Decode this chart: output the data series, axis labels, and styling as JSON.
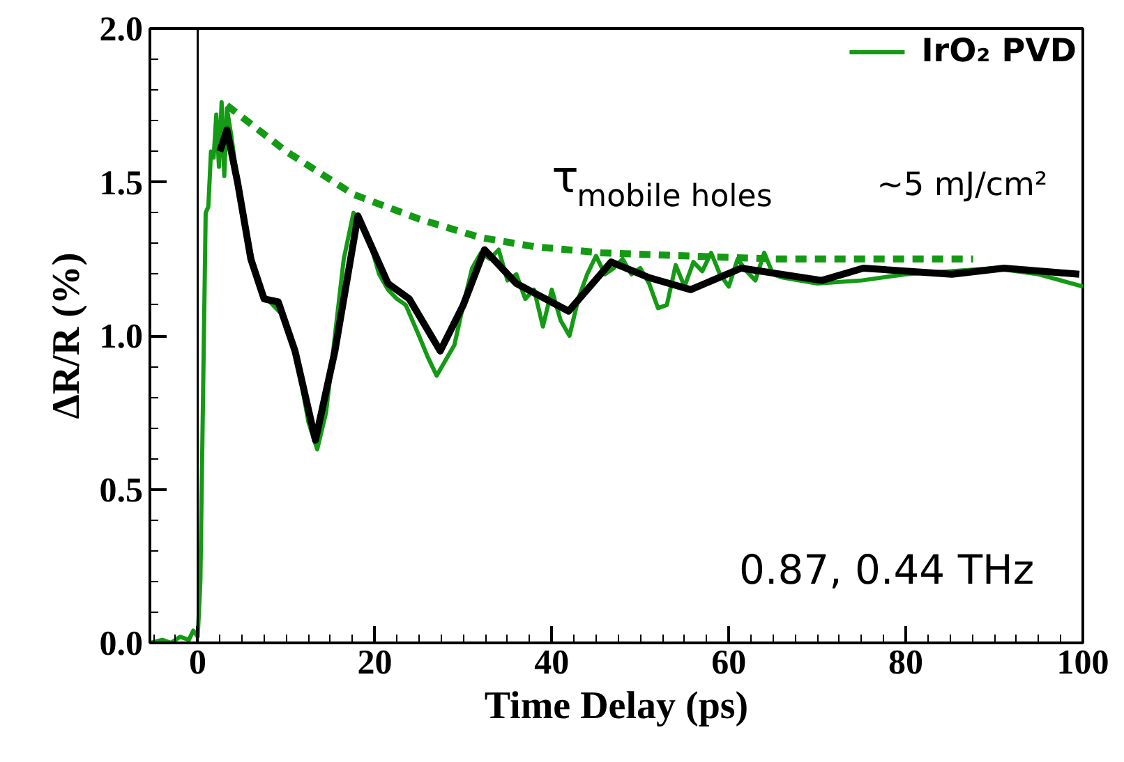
{
  "chart_data": {
    "type": "line",
    "xlabel": "Time Delay (ps)",
    "ylabel": "ΔR/R (%)",
    "x": [
      -5.4,
      -4,
      -3,
      -2,
      -1,
      -0.5,
      0,
      0.3,
      0.6,
      0.9,
      1.2,
      1.5,
      1.8,
      2.1,
      2.4,
      2.7,
      3,
      3.3,
      3.8,
      4.5,
      5.5,
      6.5,
      7.5,
      8.5,
      9.5,
      10.5,
      11.5,
      12.5,
      13.5,
      14.5,
      15.5,
      16.5,
      17.6,
      18.5,
      19.5,
      20.5,
      21.5,
      22.5,
      23.5,
      25,
      26,
      27,
      28,
      29,
      30,
      31,
      32,
      33,
      34,
      35,
      36,
      37,
      38,
      39,
      40,
      41,
      42,
      43,
      44,
      45,
      46,
      47,
      48,
      49,
      50,
      51,
      52,
      53,
      54,
      55,
      56,
      57,
      58,
      59,
      60,
      61,
      62,
      63,
      64,
      65,
      66,
      70,
      75,
      80,
      85,
      90,
      95,
      100
    ],
    "series": [
      {
        "name": "IrO₂ PVD",
        "color": "#149a14",
        "values": [
          0.0,
          0.01,
          0.0,
          0.02,
          0.01,
          0.04,
          0.02,
          0.2,
          0.8,
          1.4,
          1.42,
          1.6,
          1.58,
          1.72,
          1.55,
          1.76,
          1.52,
          1.74,
          1.65,
          1.5,
          1.35,
          1.2,
          1.13,
          1.1,
          1.07,
          1.0,
          0.88,
          0.72,
          0.63,
          0.75,
          1.0,
          1.25,
          1.4,
          1.37,
          1.3,
          1.2,
          1.15,
          1.12,
          1.1,
          1.0,
          0.93,
          0.87,
          0.92,
          0.97,
          1.1,
          1.22,
          1.27,
          1.25,
          1.28,
          1.18,
          1.2,
          1.12,
          1.15,
          1.03,
          1.15,
          1.05,
          1.0,
          1.12,
          1.2,
          1.26,
          1.2,
          1.22,
          1.25,
          1.2,
          1.22,
          1.17,
          1.09,
          1.1,
          1.23,
          1.16,
          1.24,
          1.21,
          1.27,
          1.2,
          1.16,
          1.25,
          1.21,
          1.18,
          1.27,
          1.2,
          1.19,
          1.17,
          1.18,
          1.2,
          1.21,
          1.22,
          1.2,
          1.16
        ]
      },
      {
        "color": "#000000",
        "x": [
          2.5,
          3.3,
          4.5,
          6,
          7.5,
          9.1,
          11,
          13.3,
          15.5,
          18.1,
          21.5,
          23.9,
          27.4,
          30,
          32.4,
          36,
          41.9,
          46.7,
          50.9,
          55.7,
          61.4,
          70.5,
          75.2,
          85.2,
          91.1,
          99.6
        ],
        "values": [
          1.6,
          1.67,
          1.5,
          1.25,
          1.12,
          1.11,
          0.95,
          0.66,
          0.95,
          1.39,
          1.17,
          1.12,
          0.95,
          1.1,
          1.28,
          1.17,
          1.08,
          1.24,
          1.19,
          1.15,
          1.22,
          1.18,
          1.22,
          1.2,
          1.22,
          1.2
        ]
      },
      {
        "color": "#149a14",
        "line_style": "dashed",
        "x": [
          3.3,
          10,
          17.6,
          25,
          31.9,
          38,
          45.6,
          55,
          65.2,
          75,
          87.6
        ],
        "values": [
          1.75,
          1.6,
          1.46,
          1.38,
          1.32,
          1.29,
          1.27,
          1.26,
          1.25,
          1.25,
          1.25
        ]
      }
    ],
    "xlim": [
      -5.4,
      100
    ],
    "xticks": [
      0,
      20,
      40,
      60,
      80,
      100
    ],
    "ylim": [
      0,
      2
    ],
    "yticks": [
      {
        "value": 0,
        "label": "0.0"
      },
      {
        "value": 0.5,
        "label": "0.5"
      },
      {
        "value": 1,
        "label": "1.0"
      },
      {
        "value": 1.5,
        "label": "1.5"
      },
      {
        "value": 2,
        "label": "2.0"
      }
    ],
    "ref_lines": [
      {
        "axis": "x",
        "value": 0,
        "color": "#000000"
      }
    ],
    "annotations": [
      "~5 mJ/cm²",
      "0.87, 0.44 THz",
      "τ$_{mobile holes}$"
    ],
    "legend": "top right",
    "grid": false,
    "marker": "none"
  }
}
